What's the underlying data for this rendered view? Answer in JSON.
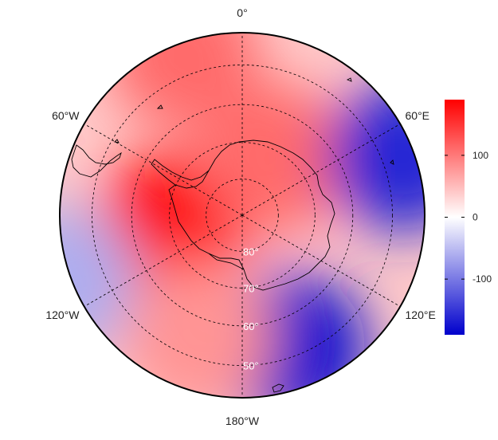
{
  "map": {
    "projection": "south-polar-stereographic",
    "longitude_labels": [
      {
        "lon": 0,
        "text": "0°"
      },
      {
        "lon": -60,
        "text": "60°W"
      },
      {
        "lon": 60,
        "text": "60°E"
      },
      {
        "lon": -120,
        "text": "120°W"
      },
      {
        "lon": 120,
        "text": "120°E"
      },
      {
        "lon": 180,
        "text": "180°W"
      }
    ],
    "latitude_labels": [
      {
        "lat": -80,
        "text": "80°"
      },
      {
        "lat": -70,
        "text": "70°"
      },
      {
        "lat": -60,
        "text": "60°"
      },
      {
        "lat": -50,
        "text": "50°"
      }
    ],
    "graticule": {
      "latitudes": [
        -80,
        -70,
        -60,
        -50
      ],
      "meridians_every": 60,
      "style": "dashed"
    },
    "field_anomalies": [
      {
        "lon": -100,
        "lat": -70,
        "value": 190
      },
      {
        "lon": 30,
        "lat": -72,
        "value": 110
      },
      {
        "lon": -20,
        "lat": -45,
        "value": 110
      },
      {
        "lon": 70,
        "lat": -45,
        "value": -160
      },
      {
        "lon": 160,
        "lat": -52,
        "value": -180
      },
      {
        "lon": -110,
        "lat": -40,
        "value": -60
      },
      {
        "lon": -160,
        "lat": -55,
        "value": 80
      }
    ]
  },
  "colorbar": {
    "min": -190,
    "max": 190,
    "ticks": [
      {
        "value": 100,
        "label": "100"
      },
      {
        "value": 0,
        "label": "0"
      },
      {
        "value": -100,
        "label": "-100"
      }
    ],
    "colors": {
      "low": "#0000cc",
      "mid": "#ffffff",
      "high": "#ff0000"
    }
  }
}
